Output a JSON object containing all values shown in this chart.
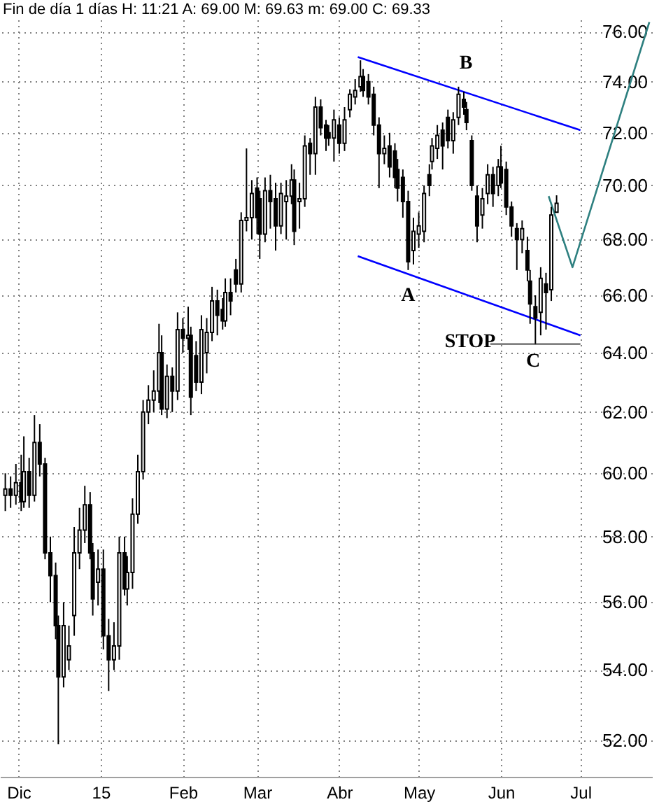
{
  "chart_data": {
    "type": "candlestick",
    "title": "Fin de día 1 días H: 11:21 A: 69.00 M: 69.63 m: 69.00 C: 69.33",
    "x": [
      "2014-11-26",
      "2014-11-28",
      "2014-11-30",
      "2014-12-02",
      "2014-12-03",
      "2014-12-05",
      "2014-12-07",
      "2014-12-09",
      "2014-12-11",
      "2014-12-13",
      "2014-12-15",
      "2014-12-16",
      "2014-12-18",
      "2014-12-20",
      "2014-12-22",
      "2014-12-24",
      "2014-12-26",
      "2014-12-28",
      "2014-12-29",
      "2014-12-31",
      "2015-01-02",
      "2015-01-04",
      "2015-01-06",
      "2015-01-08",
      "2015-01-10",
      "2015-01-11",
      "2015-01-13",
      "2015-01-15",
      "2015-01-17",
      "2015-01-19",
      "2015-01-21",
      "2015-01-23",
      "2015-01-24",
      "2015-01-26",
      "2015-01-28",
      "2015-01-30",
      "2015-02-01",
      "2015-02-03",
      "2015-02-04",
      "2015-02-06",
      "2015-02-08",
      "2015-02-10",
      "2015-02-12",
      "2015-02-14",
      "2015-02-16",
      "2015-02-17",
      "2015-02-19",
      "2015-02-21",
      "2015-02-23",
      "2015-02-25",
      "2015-02-27",
      "2015-03-01",
      "2015-03-02",
      "2015-03-04",
      "2015-03-06",
      "2015-03-08",
      "2015-03-10",
      "2015-03-12",
      "2015-03-14",
      "2015-03-15",
      "2015-03-17",
      "2015-03-19",
      "2015-03-21",
      "2015-03-23",
      "2015-03-25",
      "2015-03-27",
      "2015-03-28",
      "2015-03-30",
      "2015-04-01",
      "2015-04-03",
      "2015-04-05",
      "2015-04-07",
      "2015-04-09",
      "2015-04-10",
      "2015-04-12",
      "2015-04-14",
      "2015-04-16",
      "2015-04-18",
      "2015-04-20",
      "2015-04-22",
      "2015-04-23",
      "2015-04-25",
      "2015-04-27",
      "2015-04-29",
      "2015-05-01",
      "2015-05-03",
      "2015-05-05",
      "2015-05-06",
      "2015-05-08",
      "2015-05-10",
      "2015-05-12",
      "2015-05-14",
      "2015-05-16",
      "2015-05-18",
      "2015-05-19",
      "2015-05-21",
      "2015-05-23",
      "2015-05-25",
      "2015-05-27",
      "2015-05-29",
      "2015-05-31",
      "2015-06-01",
      "2015-06-03",
      "2015-06-05",
      "2015-06-07",
      "2015-06-09",
      "2015-06-11",
      "2015-06-12",
      "2015-06-14",
      "2015-06-16",
      "2015-06-18",
      "2015-06-20",
      "2015-06-22"
    ],
    "ohlc": [
      [
        59.3,
        60.0,
        58.8,
        59.5
      ],
      [
        59.5,
        59.9,
        58.9,
        59.3
      ],
      [
        59.3,
        60.3,
        59.0,
        59.7
      ],
      [
        59.7,
        60.6,
        58.8,
        59.1
      ],
      [
        59.1,
        61.2,
        58.9,
        60.05
      ],
      [
        60.05,
        60.5,
        58.9,
        59.3
      ],
      [
        59.3,
        61.9,
        59.1,
        61.0
      ],
      [
        61.0,
        61.6,
        59.9,
        60.3
      ],
      [
        60.3,
        60.5,
        57.3,
        57.5
      ],
      [
        57.5,
        58.0,
        56.0,
        56.8
      ],
      [
        56.8,
        57.2,
        54.9,
        55.3
      ],
      [
        55.3,
        55.6,
        51.9,
        53.8
      ],
      [
        53.8,
        56.0,
        53.5,
        55.3
      ],
      [
        54.3,
        55.3,
        54.0,
        54.7
      ],
      [
        55.6,
        58.3,
        55.0,
        57.5
      ],
      [
        57.5,
        58.9,
        57.0,
        58.2
      ],
      [
        58.2,
        59.6,
        57.8,
        59.0
      ],
      [
        59.0,
        59.4,
        57.3,
        57.5
      ],
      [
        57.5,
        57.8,
        55.6,
        56.1
      ],
      [
        56.6,
        57.6,
        55.9,
        57.0
      ],
      [
        57.0,
        57.6,
        54.6,
        55.0
      ],
      [
        55.0,
        55.5,
        53.4,
        54.3
      ],
      [
        54.3,
        55.4,
        54.0,
        54.7
      ],
      [
        54.7,
        58.0,
        54.3,
        57.5
      ],
      [
        57.5,
        58.0,
        56.2,
        56.4
      ],
      [
        56.4,
        57.4,
        55.9,
        56.9
      ],
      [
        56.9,
        59.2,
        56.4,
        58.7
      ],
      [
        58.7,
        60.6,
        58.4,
        60.05
      ],
      [
        60.05,
        62.4,
        59.8,
        62.0
      ],
      [
        62.0,
        62.9,
        61.6,
        62.4
      ],
      [
        62.4,
        63.4,
        62.0,
        62.7
      ],
      [
        62.7,
        65.0,
        62.3,
        64.0
      ],
      [
        64.0,
        64.6,
        61.9,
        62.1
      ],
      [
        62.1,
        63.6,
        61.8,
        63.2
      ],
      [
        63.2,
        63.5,
        62.0,
        62.7
      ],
      [
        62.7,
        65.4,
        62.4,
        64.8
      ],
      [
        64.8,
        65.2,
        64.0,
        64.5
      ],
      [
        64.5,
        65.6,
        64.1,
        64.6
      ],
      [
        64.6,
        64.9,
        61.9,
        62.5
      ],
      [
        63.9,
        64.4,
        62.7,
        63.0
      ],
      [
        63.0,
        65.3,
        62.6,
        64.8
      ],
      [
        64.0,
        65.2,
        63.3,
        64.7
      ],
      [
        64.7,
        66.3,
        64.4,
        65.8
      ],
      [
        65.8,
        66.2,
        64.6,
        65.3
      ],
      [
        65.5,
        65.9,
        64.8,
        65.1
      ],
      [
        65.1,
        66.6,
        64.9,
        66.1
      ],
      [
        66.1,
        66.6,
        65.3,
        65.8
      ],
      [
        66.9,
        67.3,
        66.1,
        66.4
      ],
      [
        66.4,
        69.0,
        66.1,
        68.7
      ],
      [
        68.7,
        71.4,
        68.3,
        68.8
      ],
      [
        68.8,
        70.2,
        68.0,
        69.7
      ],
      [
        69.9,
        70.3,
        68.2,
        68.8
      ],
      [
        69.5,
        69.8,
        67.3,
        68.2
      ],
      [
        68.2,
        70.3,
        67.9,
        69.8
      ],
      [
        69.8,
        70.4,
        68.4,
        69.4
      ],
      [
        69.5,
        70.1,
        67.6,
        68.5
      ],
      [
        68.5,
        70.1,
        68.2,
        69.7
      ],
      [
        69.4,
        70.2,
        68.0,
        69.6
      ],
      [
        69.6,
        70.8,
        69.3,
        70.2
      ],
      [
        70.2,
        70.6,
        67.8,
        68.3
      ],
      [
        69.4,
        70.1,
        68.4,
        69.5
      ],
      [
        69.5,
        71.9,
        69.2,
        71.5
      ],
      [
        71.6,
        71.8,
        70.4,
        71.2
      ],
      [
        71.2,
        73.4,
        70.4,
        73.0
      ],
      [
        73.0,
        73.3,
        71.9,
        72.2
      ],
      [
        72.3,
        72.5,
        71.3,
        71.8
      ],
      [
        72.0,
        72.3,
        71.5,
        71.8
      ],
      [
        71.8,
        72.9,
        70.9,
        72.5
      ],
      [
        72.3,
        72.6,
        71.2,
        71.6
      ],
      [
        71.6,
        73.0,
        71.3,
        72.5
      ],
      [
        72.9,
        73.7,
        72.6,
        73.5
      ],
      [
        73.4,
        74.1,
        73.1,
        73.65
      ],
      [
        73.8,
        74.85,
        73.6,
        74.2
      ],
      [
        74.2,
        74.5,
        73.4,
        73.65
      ],
      [
        74.0,
        74.3,
        73.1,
        73.4
      ],
      [
        73.5,
        73.8,
        71.9,
        72.3
      ],
      [
        72.3,
        72.6,
        69.9,
        71.2
      ],
      [
        71.2,
        71.9,
        70.8,
        71.4
      ],
      [
        71.5,
        72.0,
        70.3,
        70.7
      ],
      [
        71.3,
        71.6,
        69.9,
        70.3
      ],
      [
        70.6,
        71.0,
        69.4,
        69.9
      ],
      [
        70.3,
        70.6,
        68.8,
        69.4
      ],
      [
        69.4,
        69.8,
        66.9,
        67.2
      ],
      [
        67.6,
        68.8,
        67.1,
        68.3
      ],
      [
        68.2,
        69.0,
        67.7,
        68.5
      ],
      [
        68.3,
        70.0,
        67.9,
        69.7
      ],
      [
        70.4,
        70.8,
        69.6,
        70.0
      ],
      [
        70.9,
        71.8,
        70.6,
        71.5
      ],
      [
        71.4,
        72.3,
        71.0,
        71.9
      ],
      [
        72.1,
        72.4,
        70.6,
        71.5
      ],
      [
        72.6,
        72.9,
        71.4,
        71.7
      ],
      [
        71.7,
        72.8,
        71.2,
        72.5
      ],
      [
        72.6,
        73.8,
        72.3,
        73.5
      ],
      [
        73.3,
        73.6,
        72.7,
        73.0
      ],
      [
        72.9,
        73.2,
        72.1,
        72.4
      ],
      [
        71.7,
        71.9,
        69.8,
        70.0
      ],
      [
        69.6,
        70.0,
        67.9,
        68.5
      ],
      [
        68.9,
        69.9,
        68.4,
        69.5
      ],
      [
        69.7,
        70.8,
        69.3,
        70.4
      ],
      [
        70.4,
        70.7,
        69.2,
        69.7
      ],
      [
        70.0,
        71.0,
        69.6,
        70.7
      ],
      [
        70.7,
        71.5,
        69.9,
        70.1
      ],
      [
        70.6,
        70.9,
        68.9,
        69.2
      ],
      [
        69.2,
        69.4,
        68.1,
        68.5
      ],
      [
        68.4,
        68.6,
        66.9,
        68.0
      ],
      [
        68.0,
        68.7,
        67.5,
        68.4
      ],
      [
        67.6,
        68.1,
        66.5,
        66.9
      ],
      [
        66.5,
        66.9,
        65.0,
        65.7
      ],
      [
        65.6,
        66.0,
        64.3,
        65.2
      ],
      [
        65.4,
        67.0,
        64.6,
        66.6
      ],
      [
        66.4,
        66.8,
        64.8,
        66.1
      ],
      [
        66.2,
        69.2,
        65.8,
        68.9
      ],
      [
        69.0,
        69.63,
        69.0,
        69.33
      ]
    ],
    "series": [
      {
        "type": "line",
        "color": "#0000ff",
        "x": [
          "2015-04-08",
          "2015-07-01"
        ],
        "values": [
          74.98,
          72.1
        ]
      },
      {
        "type": "line",
        "color": "#0000ff",
        "x": [
          "2015-04-08",
          "2015-07-01"
        ],
        "values": [
          67.4,
          64.6
        ]
      },
      {
        "type": "line",
        "color": "#808080",
        "x": [
          "2015-05-28",
          "2015-07-01"
        ],
        "values": [
          64.3,
          64.3
        ]
      },
      {
        "type": "line",
        "color": "#2e8080",
        "x": [
          "2015-06-19",
          "2015-06-28",
          "2015-07-27"
        ],
        "values": [
          69.6,
          67.0,
          76.4
        ]
      }
    ],
    "annotations": [
      {
        "text": "A",
        "x": "2015-04-27",
        "y": 66.9
      },
      "B",
      "STOP",
      "C"
    ],
    "xlim": [
      "2014-11-24",
      "2015-07-28"
    ],
    "xticks": [
      {
        "value": "2014-12-01",
        "label": "Dic"
      },
      {
        "value": "2015-01-01",
        "label": "15"
      },
      {
        "value": "2015-02-01",
        "label": "Feb"
      },
      {
        "value": "2015-03-01",
        "label": "Mar"
      },
      {
        "value": "2015-04-01",
        "label": "Abr"
      },
      {
        "value": "2015-05-01",
        "label": "May"
      },
      {
        "value": "2015-06-01",
        "label": "Jun"
      },
      {
        "value": "2015-07-01",
        "label": "Jul"
      }
    ],
    "ylim": [
      51.0,
      76.5
    ],
    "yticks": [
      {
        "value": 52,
        "label": "52.00"
      },
      {
        "value": 54,
        "label": "54.00"
      },
      {
        "value": 56,
        "label": "56.00"
      },
      {
        "value": 58,
        "label": "58.00"
      },
      {
        "value": 60,
        "label": "60.00"
      },
      {
        "value": 62,
        "label": "62.00"
      },
      {
        "value": 64,
        "label": "64.00"
      },
      {
        "value": 66,
        "label": "66.00"
      },
      {
        "value": 68,
        "label": "68.00"
      },
      {
        "value": 70,
        "label": "70.00"
      },
      {
        "value": 72,
        "label": "72.00"
      },
      {
        "value": 74,
        "label": "74.00"
      },
      {
        "value": 76,
        "label": "76.00"
      }
    ],
    "log": true,
    "grid": true
  }
}
